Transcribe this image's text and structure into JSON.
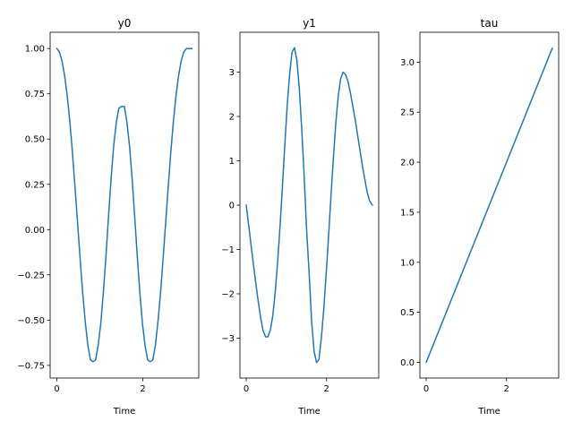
{
  "chart_data": [
    {
      "type": "line",
      "title": "y0",
      "xlabel": "Time",
      "ylabel": "",
      "xlim": [
        -0.157,
        3.299
      ],
      "ylim": [
        -0.82,
        1.09
      ],
      "xticks": [
        0,
        2
      ],
      "xtick_labels": [
        "0",
        "2"
      ],
      "yticks": [
        -0.75,
        -0.5,
        -0.25,
        0.0,
        0.25,
        0.5,
        0.75,
        1.0
      ],
      "ytick_labels": [
        "−0.75",
        "−0.50",
        "−0.25",
        "0.00",
        "0.25",
        "0.50",
        "0.75",
        "1.00"
      ],
      "grid": false,
      "color": "#1f77b4",
      "x": [
        0.0,
        0.06,
        0.12,
        0.18,
        0.24,
        0.3,
        0.36,
        0.42,
        0.48,
        0.54,
        0.6,
        0.66,
        0.72,
        0.78,
        0.84,
        0.9,
        0.96,
        1.02,
        1.08,
        1.14,
        1.2,
        1.26,
        1.32,
        1.38,
        1.44,
        1.5,
        1.57,
        1.63,
        1.69,
        1.75,
        1.81,
        1.87,
        1.93,
        1.99,
        2.05,
        2.11,
        2.17,
        2.23,
        2.29,
        2.35,
        2.41,
        2.47,
        2.53,
        2.59,
        2.65,
        2.71,
        2.77,
        2.83,
        2.89,
        2.95,
        3.01,
        3.07,
        3.14
      ],
      "y": [
        1.0,
        0.98,
        0.93,
        0.85,
        0.74,
        0.6,
        0.43,
        0.24,
        0.04,
        -0.16,
        -0.35,
        -0.51,
        -0.64,
        -0.72,
        -0.73,
        -0.72,
        -0.64,
        -0.52,
        -0.35,
        -0.15,
        0.07,
        0.28,
        0.46,
        0.59,
        0.67,
        0.68,
        0.68,
        0.59,
        0.46,
        0.28,
        0.07,
        -0.15,
        -0.35,
        -0.52,
        -0.64,
        -0.72,
        -0.73,
        -0.72,
        -0.64,
        -0.51,
        -0.35,
        -0.16,
        0.04,
        0.24,
        0.43,
        0.6,
        0.74,
        0.85,
        0.93,
        0.98,
        1.0,
        1.0,
        1.0
      ]
    },
    {
      "type": "line",
      "title": "y1",
      "xlabel": "Time",
      "ylabel": "",
      "xlim": [
        -0.157,
        3.299
      ],
      "ylim": [
        -3.9,
        3.9
      ],
      "xticks": [
        0,
        2
      ],
      "xtick_labels": [
        "0",
        "2"
      ],
      "yticks": [
        -3,
        -2,
        -1,
        0,
        1,
        2,
        3
      ],
      "ytick_labels": [
        "−3",
        "−2",
        "−1",
        "0",
        "1",
        "2",
        "3"
      ],
      "grid": false,
      "color": "#1f77b4",
      "x": [
        0.0,
        0.06,
        0.12,
        0.18,
        0.24,
        0.3,
        0.36,
        0.42,
        0.48,
        0.54,
        0.6,
        0.66,
        0.72,
        0.78,
        0.84,
        0.9,
        0.96,
        1.02,
        1.08,
        1.14,
        1.2,
        1.26,
        1.32,
        1.38,
        1.44,
        1.5,
        1.57,
        1.63,
        1.69,
        1.75,
        1.81,
        1.87,
        1.93,
        1.99,
        2.05,
        2.11,
        2.17,
        2.23,
        2.29,
        2.35,
        2.41,
        2.47,
        2.53,
        2.59,
        2.65,
        2.71,
        2.77,
        2.83,
        2.89,
        2.95,
        3.01,
        3.07,
        3.14
      ],
      "y": [
        0.0,
        -0.45,
        -0.9,
        -1.35,
        -1.78,
        -2.18,
        -2.55,
        -2.83,
        -2.97,
        -2.97,
        -2.82,
        -2.5,
        -1.98,
        -1.3,
        -0.5,
        0.4,
        1.35,
        2.25,
        2.95,
        3.45,
        3.55,
        3.28,
        2.65,
        1.75,
        0.7,
        -0.5,
        -1.6,
        -2.65,
        -3.3,
        -3.55,
        -3.48,
        -3.0,
        -2.35,
        -1.55,
        -0.7,
        0.2,
        1.05,
        1.85,
        2.45,
        2.85,
        3.0,
        2.95,
        2.8,
        2.55,
        2.25,
        1.95,
        1.6,
        1.25,
        0.9,
        0.6,
        0.3,
        0.1,
        0.0
      ]
    },
    {
      "type": "line",
      "title": "tau",
      "xlabel": "Time",
      "ylabel": "",
      "xlim": [
        -0.157,
        3.299
      ],
      "ylim": [
        -0.157,
        3.299
      ],
      "xticks": [
        0,
        2
      ],
      "xtick_labels": [
        "0",
        "2"
      ],
      "yticks": [
        0.0,
        0.5,
        1.0,
        1.5,
        2.0,
        2.5,
        3.0
      ],
      "ytick_labels": [
        "0.0",
        "0.5",
        "1.0",
        "1.5",
        "2.0",
        "2.5",
        "3.0"
      ],
      "grid": false,
      "color": "#1f77b4",
      "x": [
        0.0,
        3.14
      ],
      "y": [
        0.0,
        3.14
      ]
    }
  ]
}
